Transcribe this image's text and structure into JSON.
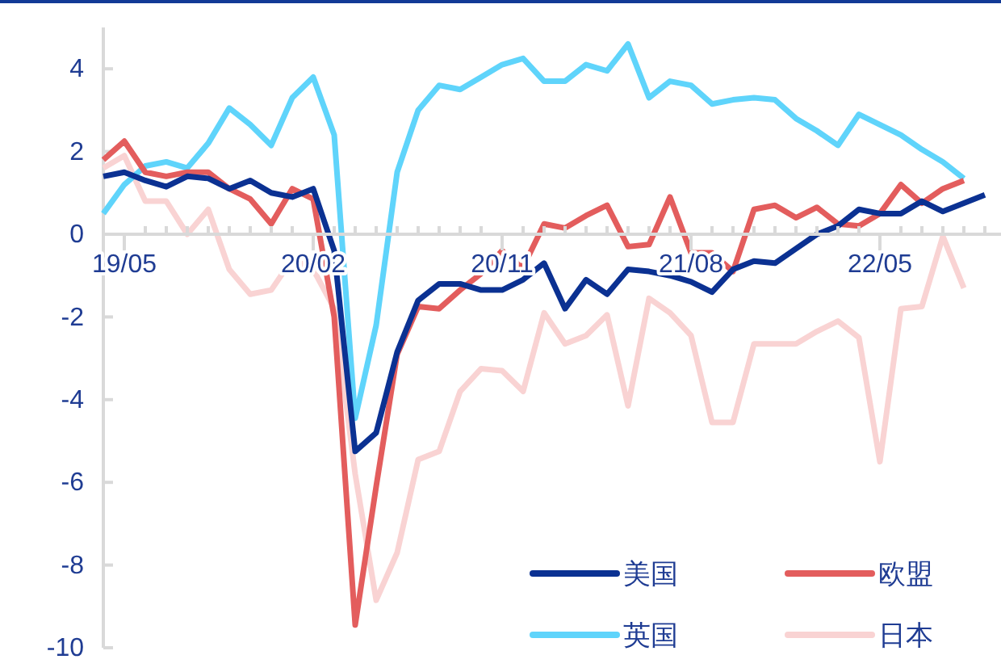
{
  "chart_data": {
    "type": "line",
    "categories": [
      null,
      "19/05",
      null,
      null,
      null,
      null,
      null,
      null,
      null,
      null,
      "20/02",
      null,
      null,
      null,
      null,
      null,
      null,
      null,
      null,
      "20/11",
      null,
      null,
      null,
      null,
      null,
      null,
      null,
      null,
      "21/08",
      null,
      null,
      null,
      null,
      null,
      null,
      null,
      null,
      "22/05",
      null,
      null,
      null,
      null,
      null
    ],
    "series": [
      {
        "name": "美国",
        "color": "#0b3192",
        "values": [
          1.4,
          1.5,
          1.3,
          1.15,
          1.4,
          1.35,
          1.1,
          1.3,
          1.0,
          0.9,
          1.1,
          -0.4,
          -5.25,
          -4.8,
          -2.85,
          -1.6,
          -1.2,
          -1.2,
          -1.35,
          -1.35,
          -1.1,
          -0.7,
          -1.8,
          -1.1,
          -1.45,
          -0.85,
          -0.9,
          -1.0,
          -1.15,
          -1.4,
          -0.85,
          -0.65,
          -0.7,
          -0.35,
          0.0,
          0.2,
          0.6,
          0.5,
          0.5,
          0.8,
          0.55,
          0.75,
          0.95
        ]
      },
      {
        "name": "欧盟",
        "color": "#e35d5d",
        "values": [
          1.8,
          2.25,
          1.5,
          1.4,
          1.5,
          1.5,
          1.1,
          0.85,
          0.25,
          1.1,
          0.85,
          -2.0,
          -9.45,
          -6.1,
          -2.9,
          -1.75,
          -1.8,
          -1.35,
          -0.95,
          -0.4,
          -0.8,
          0.25,
          0.15,
          0.45,
          0.7,
          -0.3,
          -0.25,
          0.9,
          -0.45,
          -0.45,
          -0.9,
          0.6,
          0.7,
          0.4,
          0.65,
          0.25,
          0.2,
          0.5,
          1.2,
          0.75,
          1.1,
          1.3,
          null
        ]
      },
      {
        "name": "英国",
        "color": "#5fd4fb",
        "values": [
          0.5,
          1.2,
          1.65,
          1.75,
          1.6,
          2.2,
          3.05,
          2.65,
          2.15,
          3.3,
          3.8,
          2.4,
          -4.45,
          -2.2,
          1.5,
          3.0,
          3.6,
          3.5,
          3.8,
          4.1,
          4.25,
          3.7,
          3.7,
          4.1,
          3.95,
          4.6,
          3.3,
          3.7,
          3.6,
          3.15,
          3.25,
          3.3,
          3.25,
          2.8,
          2.5,
          2.15,
          2.9,
          2.65,
          2.4,
          2.05,
          1.75,
          1.35,
          null
        ]
      },
      {
        "name": "日本",
        "color": "#f9d3d3",
        "values": [
          1.6,
          1.9,
          0.8,
          0.8,
          0.0,
          0.6,
          -0.85,
          -1.45,
          -1.35,
          -0.6,
          -0.85,
          -1.8,
          -5.8,
          -8.85,
          -7.7,
          -5.45,
          -5.25,
          -3.8,
          -3.25,
          -3.3,
          -3.8,
          -1.9,
          -2.65,
          -2.45,
          -1.95,
          -4.15,
          -1.55,
          -1.9,
          -2.45,
          -4.55,
          -4.55,
          -2.65,
          -2.65,
          -2.65,
          -2.35,
          -2.1,
          -2.5,
          -5.5,
          -1.8,
          -1.75,
          -0.05,
          -1.3,
          null
        ]
      }
    ],
    "ylim": [
      -10,
      5
    ],
    "yticks": [
      -10,
      -8,
      -6,
      -4,
      -2,
      0,
      2,
      4
    ],
    "grid": false,
    "legend": "bottom right",
    "line_style": "solid",
    "marker": "none"
  }
}
